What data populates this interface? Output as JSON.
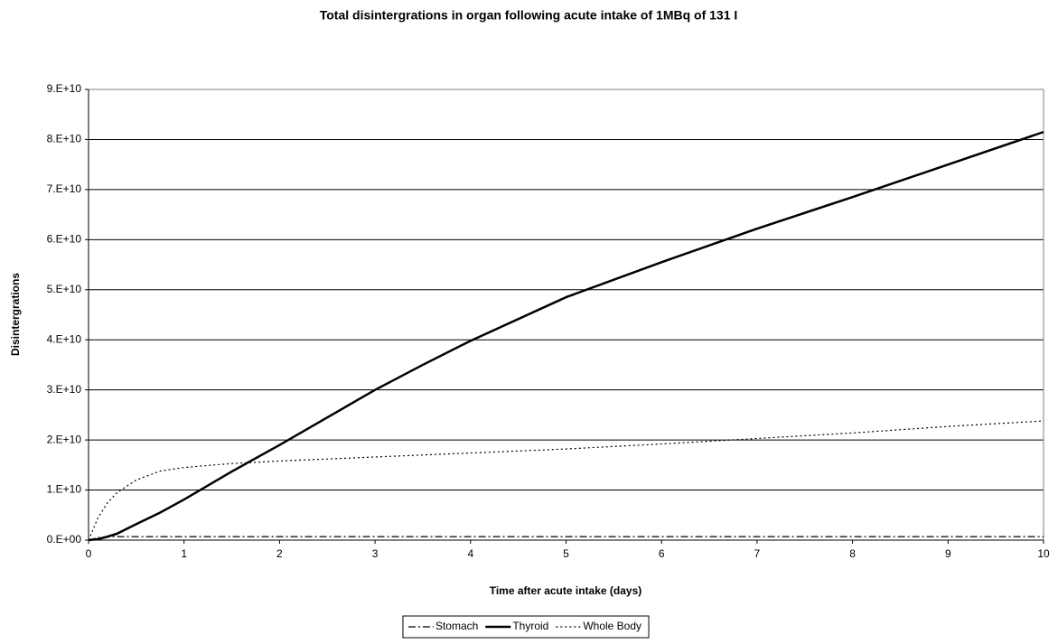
{
  "chart_data": {
    "type": "line",
    "title": "Total disintergrations in organ following acute intake of 1MBq of 131 I",
    "x_label": "Time after acute intake (days)",
    "y_label": "Disintergrations",
    "x": [
      0,
      0.1,
      0.2,
      0.3,
      0.5,
      0.75,
      1,
      1.5,
      2,
      2.5,
      3,
      3.5,
      4,
      5,
      6,
      7,
      8,
      9,
      10
    ],
    "series": [
      {
        "name": "Stomach",
        "color": "#000000",
        "line_style": "dashdot",
        "width": 1.2,
        "values": [
          0,
          500000000.0,
          700000000.0,
          700000000.0,
          700000000.0,
          700000000.0,
          700000000.0,
          700000000.0,
          700000000.0,
          700000000.0,
          700000000.0,
          700000000.0,
          700000000.0,
          700000000.0,
          700000000.0,
          700000000.0,
          700000000.0,
          700000000.0,
          700000000.0
        ]
      },
      {
        "name": "Thyroid",
        "color": "#000000",
        "line_style": "solid",
        "width": 2.5,
        "values": [
          0,
          200000000.0,
          700000000.0,
          1300000000.0,
          3200000000.0,
          5500000000.0,
          8100000000.0,
          13700000000.0,
          19000000000.0,
          24500000000.0,
          30000000000.0,
          35000000000.0,
          39800000000.0,
          48500000000.0,
          55500000000.0,
          62200000000.0,
          68500000000.0,
          75000000000.0,
          81500000000.0
        ]
      },
      {
        "name": "Whole Body",
        "color": "#000000",
        "line_style": "dotted",
        "width": 1.2,
        "values": [
          0,
          4500000000.0,
          7500000000.0,
          9500000000.0,
          12000000000.0,
          13800000000.0,
          14500000000.0,
          15300000000.0,
          15800000000.0,
          16200000000.0,
          16600000000.0,
          17000000000.0,
          17400000000.0,
          18200000000.0,
          19200000000.0,
          20300000000.0,
          21400000000.0,
          22700000000.0,
          23800000000.0
        ]
      }
    ],
    "xlim": [
      0,
      10
    ],
    "xticks": [
      0,
      1,
      2,
      3,
      4,
      5,
      6,
      7,
      8,
      9,
      10
    ],
    "ylim": [
      0,
      90000000000.0
    ],
    "yticks": [
      {
        "value": 0,
        "label": "0.E+00"
      },
      {
        "value": 10000000000.0,
        "label": "1.E+10"
      },
      {
        "value": 20000000000.0,
        "label": "2.E+10"
      },
      {
        "value": 30000000000.0,
        "label": "3.E+10"
      },
      {
        "value": 40000000000.0,
        "label": "4.E+10"
      },
      {
        "value": 50000000000.0,
        "label": "5.E+10"
      },
      {
        "value": 60000000000.0,
        "label": "6.E+10"
      },
      {
        "value": 70000000000.0,
        "label": "7.E+10"
      },
      {
        "value": 80000000000.0,
        "label": "8.E+10"
      },
      {
        "value": 90000000000.0,
        "label": "9.E+10"
      }
    ],
    "grid": true,
    "legend": "bottom"
  }
}
